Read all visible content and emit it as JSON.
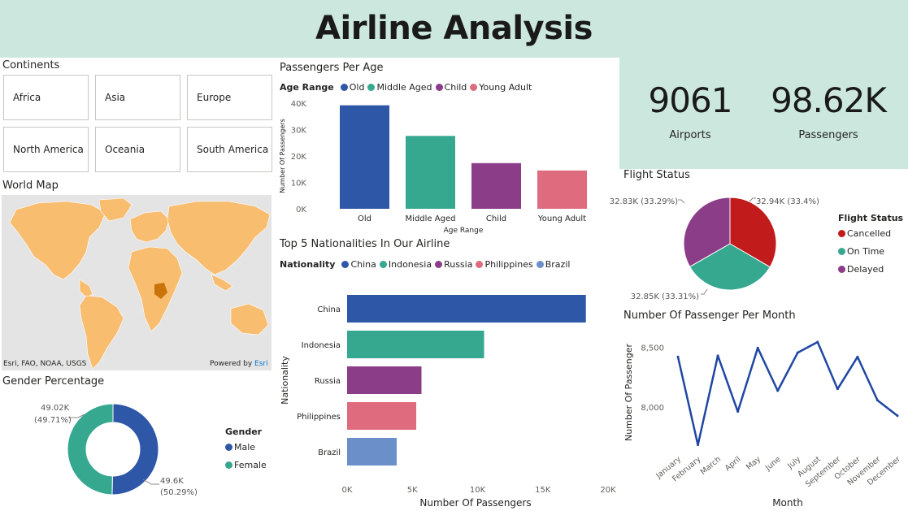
{
  "header": {
    "title": "Airline Analysis"
  },
  "continents": {
    "title": "Continents",
    "items": [
      "Africa",
      "Asia",
      "Europe",
      "North America",
      "Oceania",
      "South America"
    ]
  },
  "world_map": {
    "title": "World Map",
    "attribution": "Esri, FAO, NOAA, USGS",
    "powered_by": "Powered by",
    "esri_link": "Esri",
    "land_color": "#f8bd6f",
    "water_color": "#e4e4e4"
  },
  "gender": {
    "title": "Gender Percentage",
    "legend_title": "Gender",
    "legend_items": [
      {
        "label": "Male",
        "color": "#2f57a8"
      },
      {
        "label": "Female",
        "color": "#36a890"
      }
    ],
    "labels": {
      "female_value": "49.02K",
      "female_pct": "(49.71%)",
      "male_value": "49.6K",
      "male_pct": "(50.29%)"
    }
  },
  "passengers_per_age": {
    "title": "Passengers Per Age",
    "legend_title": "Age Range",
    "legend_items": [
      {
        "label": "Old",
        "color": "#2f57a8"
      },
      {
        "label": "Middle Aged",
        "color": "#36a890"
      },
      {
        "label": "Child",
        "color": "#8b3d88"
      },
      {
        "label": "Young Adult",
        "color": "#df6b7f"
      }
    ]
  },
  "top_nationalities": {
    "title": "Top 5 Nationalities In Our Airline",
    "legend_title": "Nationality",
    "legend_items": [
      {
        "label": "China",
        "color": "#2f57a8"
      },
      {
        "label": "Indonesia",
        "color": "#36a890"
      },
      {
        "label": "Russia",
        "color": "#8b3d88"
      },
      {
        "label": "Philippines",
        "color": "#df6b7f"
      },
      {
        "label": "Brazil",
        "color": "#6b8fc9"
      }
    ]
  },
  "kpis": [
    {
      "value": "9061",
      "label": "Airports"
    },
    {
      "value": "98.62K",
      "label": "Passengers"
    }
  ],
  "flight_status": {
    "title": "Flight Status",
    "legend_title": "Flight Status",
    "legend_items": [
      {
        "label": "Cancelled",
        "color": "#c11b1b"
      },
      {
        "label": "On Time",
        "color": "#36a890"
      },
      {
        "label": "Delayed",
        "color": "#8b3d88"
      }
    ],
    "labels": {
      "cancelled": "32.94K (33.4%)",
      "on_time": "32.85K (33.31%)",
      "delayed": "32.83K (33.29%)"
    }
  },
  "passenger_per_month": {
    "title": "Number Of Passenger Per Month"
  },
  "chart_data": [
    {
      "id": "age",
      "type": "bar",
      "title": "Passengers Per Age",
      "categories": [
        "Old",
        "Middle Aged",
        "Child",
        "Young Adult"
      ],
      "values": [
        39200,
        27600,
        17300,
        14500
      ],
      "colors": [
        "#2f57a8",
        "#36a890",
        "#8b3d88",
        "#df6b7f"
      ],
      "xlabel": "Age Range",
      "ylabel": "Number Of Passengers",
      "ylim": [
        0,
        40000
      ],
      "yticks": [
        "0K",
        "10K",
        "20K",
        "30K",
        "40K"
      ],
      "grid": false
    },
    {
      "id": "nationality",
      "type": "bar",
      "orientation": "horizontal",
      "title": "Top 5 Nationalities In Our Airline",
      "categories": [
        "China",
        "Indonesia",
        "Russia",
        "Philippines",
        "Brazil"
      ],
      "values": [
        18300,
        10500,
        5700,
        5300,
        3800
      ],
      "colors": [
        "#2f57a8",
        "#36a890",
        "#8b3d88",
        "#df6b7f",
        "#6b8fc9"
      ],
      "xlabel": "Number Of Passengers",
      "ylabel": "Nationality",
      "xlim": [
        0,
        20000
      ],
      "xticks": [
        "0K",
        "5K",
        "10K",
        "15K",
        "20K"
      ],
      "grid": false
    },
    {
      "id": "gender",
      "type": "pie",
      "style": "donut",
      "title": "Gender Percentage",
      "categories": [
        "Male",
        "Female"
      ],
      "values": [
        49600,
        49020
      ],
      "percents": [
        50.29,
        49.71
      ],
      "colors": [
        "#2f57a8",
        "#36a890"
      ]
    },
    {
      "id": "status",
      "type": "pie",
      "title": "Flight Status",
      "categories": [
        "Cancelled",
        "On Time",
        "Delayed"
      ],
      "values": [
        32940,
        32850,
        32830
      ],
      "percents": [
        33.4,
        33.31,
        33.29
      ],
      "colors": [
        "#c11b1b",
        "#36a890",
        "#8b3d88"
      ]
    },
    {
      "id": "month",
      "type": "line",
      "title": "Number Of Passenger Per Month",
      "categories": [
        "January",
        "February",
        "March",
        "April",
        "May",
        "June",
        "July",
        "August",
        "September",
        "October",
        "November",
        "December"
      ],
      "values": [
        8420,
        7680,
        8430,
        7960,
        8495,
        8135,
        8455,
        8545,
        8150,
        8420,
        8055,
        7925
      ],
      "color": "#1f47a3",
      "xlabel": "Month",
      "ylabel": "Number Of Passenger",
      "ylim": [
        7650,
        8620
      ],
      "yticks": [
        8000,
        8500
      ],
      "ytick_labels": [
        "8,000",
        "8,500"
      ],
      "grid": false
    }
  ]
}
